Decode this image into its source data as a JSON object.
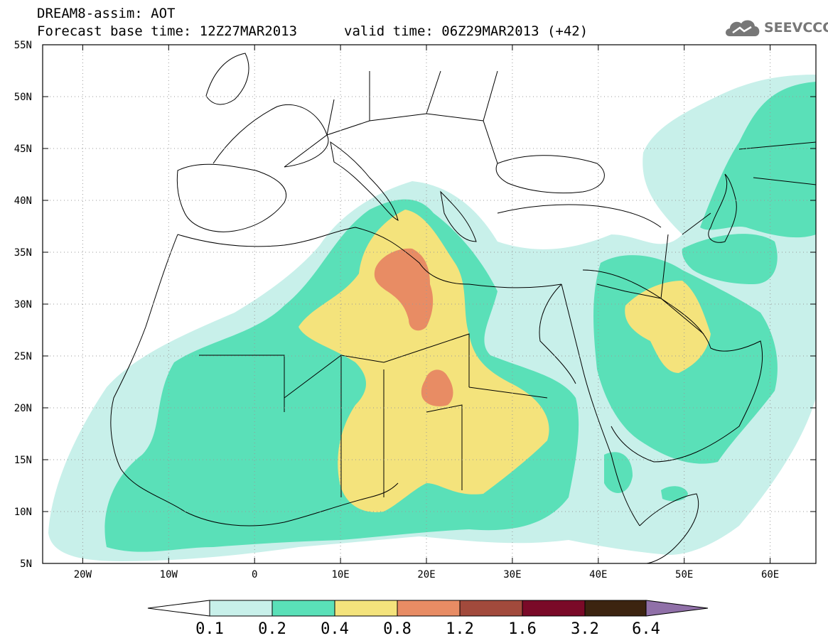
{
  "header": {
    "title": "DREAM8-assim: AOT",
    "base_time": "Forecast base time: 12Z27MAR2013",
    "valid_time": "valid time: 06Z29MAR2013 (+42)"
  },
  "logo": {
    "text": "SEEVCCC",
    "icon": "cloud-icon"
  },
  "map": {
    "projection": "lat-lon",
    "lon_range": [
      -25,
      65
    ],
    "lat_range": [
      5,
      55
    ],
    "grid": "dotted",
    "lat_ticks": [
      "5N",
      "10N",
      "15N",
      "20N",
      "25N",
      "30N",
      "35N",
      "40N",
      "45N",
      "50N",
      "55N"
    ],
    "lon_ticks": [
      "20W",
      "10W",
      "0",
      "10E",
      "20E",
      "30E",
      "40E",
      "50E",
      "60E"
    ]
  },
  "colorbar": {
    "labels": [
      "0.1",
      "0.2",
      "0.4",
      "0.8",
      "1.2",
      "1.6",
      "3.2",
      "6.4"
    ],
    "colors": [
      "#ffffff",
      "#c8f0ea",
      "#5ae0b8",
      "#f4e37c",
      "#e88c64",
      "#a24a3c",
      "#7a0a28",
      "#3c2410",
      "#9070a8"
    ]
  },
  "chart_data": {
    "type": "heatmap",
    "variable": "AOT",
    "levels": [
      0.1,
      0.2,
      0.4,
      0.8,
      1.2,
      1.6,
      3.2,
      6.4
    ],
    "max_regions": [
      {
        "level": 1.2,
        "center_lon": 18.5,
        "center_lat": 31.5
      },
      {
        "level": 1.2,
        "center_lon": 21.5,
        "center_lat": 21.0
      }
    ]
  }
}
